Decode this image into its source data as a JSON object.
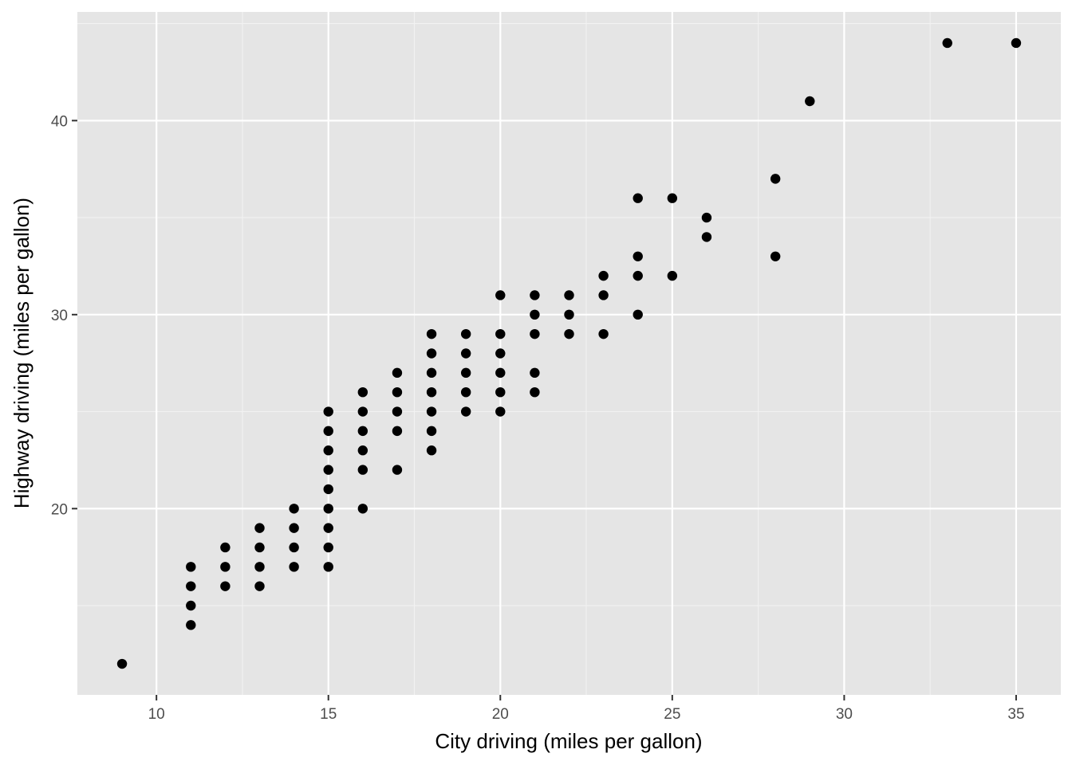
{
  "chart_data": {
    "type": "scatter",
    "title": "",
    "xlabel": "City driving (miles per gallon)",
    "ylabel": "Highway driving (miles per gallon)",
    "xlim": [
      7.7,
      36.3
    ],
    "ylim": [
      10.4,
      45.6
    ],
    "x_ticks": [
      10,
      15,
      20,
      25,
      30,
      35
    ],
    "y_ticks": [
      20,
      30,
      40
    ],
    "x_minor_ticks": [
      12.5,
      17.5,
      22.5,
      27.5,
      32.5
    ],
    "y_minor_ticks": [
      15,
      25,
      35,
      45
    ],
    "grid": true,
    "legend": "none",
    "point_color": "#000000",
    "panel_color": "#e5e5e5",
    "points": [
      [
        9,
        12
      ],
      [
        11,
        14
      ],
      [
        11,
        15
      ],
      [
        11,
        16
      ],
      [
        11,
        17
      ],
      [
        12,
        16
      ],
      [
        12,
        17
      ],
      [
        12,
        18
      ],
      [
        13,
        16
      ],
      [
        13,
        17
      ],
      [
        13,
        18
      ],
      [
        13,
        19
      ],
      [
        14,
        17
      ],
      [
        14,
        18
      ],
      [
        14,
        19
      ],
      [
        14,
        20
      ],
      [
        15,
        17
      ],
      [
        15,
        18
      ],
      [
        15,
        19
      ],
      [
        15,
        20
      ],
      [
        15,
        21
      ],
      [
        15,
        22
      ],
      [
        15,
        23
      ],
      [
        15,
        24
      ],
      [
        15,
        25
      ],
      [
        16,
        20
      ],
      [
        16,
        22
      ],
      [
        16,
        23
      ],
      [
        16,
        24
      ],
      [
        16,
        25
      ],
      [
        16,
        26
      ],
      [
        17,
        22
      ],
      [
        17,
        24
      ],
      [
        17,
        25
      ],
      [
        17,
        26
      ],
      [
        17,
        27
      ],
      [
        18,
        23
      ],
      [
        18,
        24
      ],
      [
        18,
        25
      ],
      [
        18,
        26
      ],
      [
        18,
        27
      ],
      [
        18,
        28
      ],
      [
        18,
        29
      ],
      [
        19,
        25
      ],
      [
        19,
        26
      ],
      [
        19,
        27
      ],
      [
        19,
        28
      ],
      [
        19,
        29
      ],
      [
        20,
        25
      ],
      [
        20,
        26
      ],
      [
        20,
        27
      ],
      [
        20,
        28
      ],
      [
        20,
        29
      ],
      [
        20,
        31
      ],
      [
        21,
        26
      ],
      [
        21,
        27
      ],
      [
        21,
        29
      ],
      [
        21,
        30
      ],
      [
        21,
        31
      ],
      [
        22,
        29
      ],
      [
        22,
        30
      ],
      [
        22,
        31
      ],
      [
        23,
        29
      ],
      [
        23,
        31
      ],
      [
        23,
        32
      ],
      [
        24,
        30
      ],
      [
        24,
        32
      ],
      [
        24,
        33
      ],
      [
        24,
        36
      ],
      [
        25,
        32
      ],
      [
        25,
        36
      ],
      [
        26,
        34
      ],
      [
        26,
        35
      ],
      [
        28,
        33
      ],
      [
        28,
        37
      ],
      [
        29,
        41
      ],
      [
        33,
        44
      ],
      [
        35,
        44
      ]
    ]
  }
}
